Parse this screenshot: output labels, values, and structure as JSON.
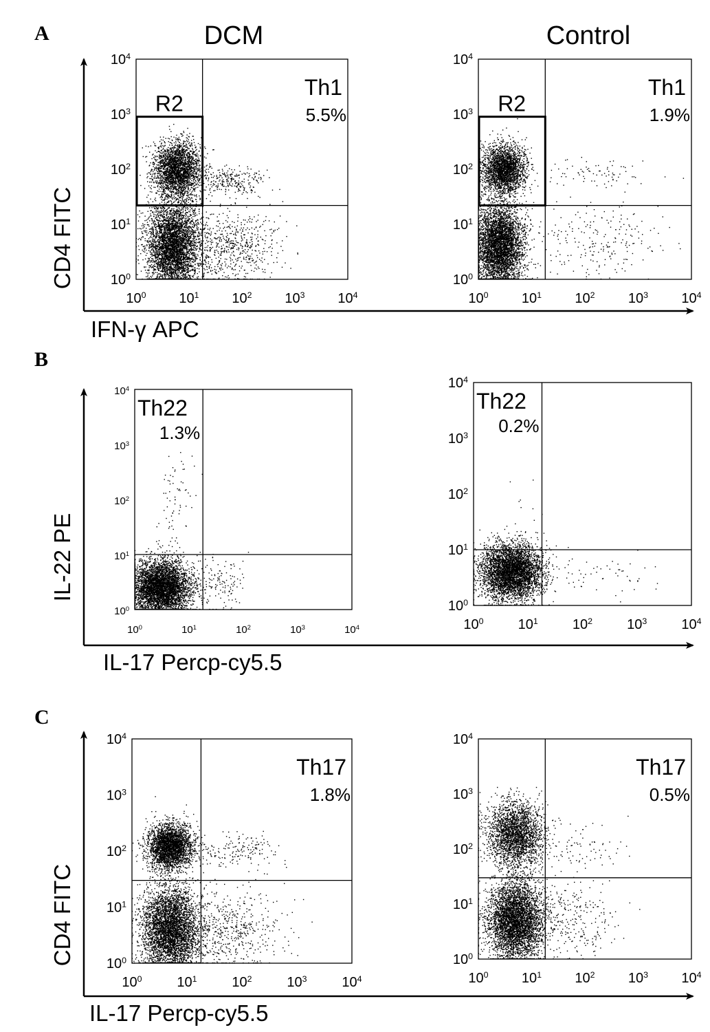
{
  "figure": {
    "column_headers": [
      "DCM",
      "Control"
    ]
  },
  "rows": [
    {
      "letter": "A",
      "ylabel": "CD4  FITC",
      "xlabel": "IFN-γ  APC"
    },
    {
      "letter": "B",
      "ylabel": "IL-22 PE",
      "xlabel": "IL-17  Percp-cy5.5"
    },
    {
      "letter": "C",
      "ylabel": "CD4  FITC",
      "xlabel": "IL-17  Percp-cy5.5"
    }
  ],
  "tick_labels": [
    "10^0",
    "10^1",
    "10^2",
    "10^3",
    "10^4"
  ],
  "chart_data": [
    {
      "type": "scatter",
      "panel": "A",
      "group": "DCM",
      "x_scale": "log",
      "y_scale": "log",
      "xlim": [
        1,
        10000
      ],
      "ylim": [
        1,
        10000
      ],
      "xlabel": "IFN-γ  APC",
      "ylabel": "CD4  FITC",
      "quadrant_thresholds": {
        "x": 18,
        "y": 22
      },
      "region_gate": {
        "label": "R2",
        "x_range": [
          1,
          18
        ],
        "y_range": [
          22,
          900
        ]
      },
      "gate_label": "Th1",
      "gate_percent": "5.5%",
      "gate_percent_value": 5.5,
      "populations": [
        {
          "center": [
            6,
            100
          ],
          "n": 2600,
          "sx": 0.22,
          "sy": 0.25
        },
        {
          "center": [
            5,
            4
          ],
          "n": 4200,
          "sx": 0.24,
          "sy": 0.4
        },
        {
          "center": [
            60,
            60
          ],
          "n": 260,
          "sx": 0.35,
          "sy": 0.12
        },
        {
          "center": [
            60,
            4
          ],
          "n": 650,
          "sx": 0.45,
          "sy": 0.35
        }
      ]
    },
    {
      "type": "scatter",
      "panel": "A",
      "group": "Control",
      "x_scale": "log",
      "y_scale": "log",
      "xlim": [
        1,
        10000
      ],
      "ylim": [
        1,
        10000
      ],
      "xlabel": "IFN-γ  APC",
      "ylabel": "CD4  FITC",
      "quadrant_thresholds": {
        "x": 18,
        "y": 22
      },
      "region_gate": {
        "label": "R2",
        "x_range": [
          1,
          18
        ],
        "y_range": [
          22,
          900
        ]
      },
      "gate_label": "Th1",
      "gate_percent": "1.9%",
      "gate_percent_value": 1.9,
      "populations": [
        {
          "center": [
            3,
            100
          ],
          "n": 2400,
          "sx": 0.2,
          "sy": 0.22
        },
        {
          "center": [
            2.5,
            4
          ],
          "n": 4200,
          "sx": 0.22,
          "sy": 0.38
        },
        {
          "center": [
            150,
            80
          ],
          "n": 80,
          "sx": 0.55,
          "sy": 0.15
        },
        {
          "center": [
            150,
            5
          ],
          "n": 220,
          "sx": 0.6,
          "sy": 0.35
        }
      ]
    },
    {
      "type": "scatter",
      "panel": "B",
      "group": "DCM",
      "x_scale": "log",
      "y_scale": "log",
      "xlim": [
        1,
        10000
      ],
      "ylim": [
        1,
        10000
      ],
      "xlabel": "IL-17  Percp-cy5.5",
      "ylabel": "IL-22 PE",
      "quadrant_thresholds": {
        "x": 18,
        "y": 10
      },
      "gate_label": "Th22",
      "gate_percent": "1.3%",
      "gate_percent_value": 1.3,
      "populations": [
        {
          "center": [
            3,
            2.5
          ],
          "n": 4500,
          "sx": 0.28,
          "sy": 0.25
        },
        {
          "center": [
            6,
            100
          ],
          "n": 70,
          "sx": 0.2,
          "sy": 0.5
        },
        {
          "center": [
            40,
            3
          ],
          "n": 120,
          "sx": 0.2,
          "sy": 0.25
        }
      ]
    },
    {
      "type": "scatter",
      "panel": "B",
      "group": "Control",
      "x_scale": "log",
      "y_scale": "log",
      "xlim": [
        1,
        10000
      ],
      "ylim": [
        1,
        10000
      ],
      "xlabel": "IL-17  Percp-cy5.5",
      "ylabel": "IL-22 PE",
      "quadrant_thresholds": {
        "x": 18,
        "y": 10
      },
      "gate_label": "Th22",
      "gate_percent": "0.2%",
      "gate_percent_value": 0.2,
      "populations": [
        {
          "center": [
            5,
            4
          ],
          "n": 4200,
          "sx": 0.28,
          "sy": 0.25
        },
        {
          "center": [
            10,
            50
          ],
          "n": 12,
          "sx": 0.2,
          "sy": 0.4
        },
        {
          "center": [
            200,
            4
          ],
          "n": 60,
          "sx": 0.55,
          "sy": 0.2
        }
      ]
    },
    {
      "type": "scatter",
      "panel": "C",
      "group": "DCM",
      "x_scale": "log",
      "y_scale": "log",
      "xlim": [
        1,
        10000
      ],
      "ylim": [
        1,
        10000
      ],
      "xlabel": "IL-17  Percp-cy5.5",
      "ylabel": "CD4  FITC",
      "quadrant_thresholds": {
        "x": 18,
        "y": 30
      },
      "gate_label": "Th17",
      "gate_percent": "1.8%",
      "gate_percent_value": 1.8,
      "populations": [
        {
          "center": [
            5,
            120
          ],
          "n": 2800,
          "sx": 0.2,
          "sy": 0.2
        },
        {
          "center": [
            5,
            4
          ],
          "n": 4200,
          "sx": 0.26,
          "sy": 0.38
        },
        {
          "center": [
            80,
            100
          ],
          "n": 180,
          "sx": 0.4,
          "sy": 0.15
        },
        {
          "center": [
            60,
            4
          ],
          "n": 500,
          "sx": 0.45,
          "sy": 0.35
        }
      ]
    },
    {
      "type": "scatter",
      "panel": "C",
      "group": "Control",
      "x_scale": "log",
      "y_scale": "log",
      "xlim": [
        1,
        10000
      ],
      "ylim": [
        1,
        10000
      ],
      "xlabel": "IL-17  Percp-cy5.5",
      "ylabel": "CD4  FITC",
      "quadrant_thresholds": {
        "x": 18,
        "y": 30
      },
      "gate_label": "Th17",
      "gate_percent": "0.5%",
      "gate_percent_value": 0.5,
      "populations": [
        {
          "center": [
            5,
            180
          ],
          "n": 2400,
          "sx": 0.26,
          "sy": 0.3
        },
        {
          "center": [
            5,
            5
          ],
          "n": 4200,
          "sx": 0.26,
          "sy": 0.35
        },
        {
          "center": [
            80,
            100
          ],
          "n": 90,
          "sx": 0.45,
          "sy": 0.2
        },
        {
          "center": [
            60,
            5
          ],
          "n": 260,
          "sx": 0.45,
          "sy": 0.35
        }
      ]
    }
  ]
}
